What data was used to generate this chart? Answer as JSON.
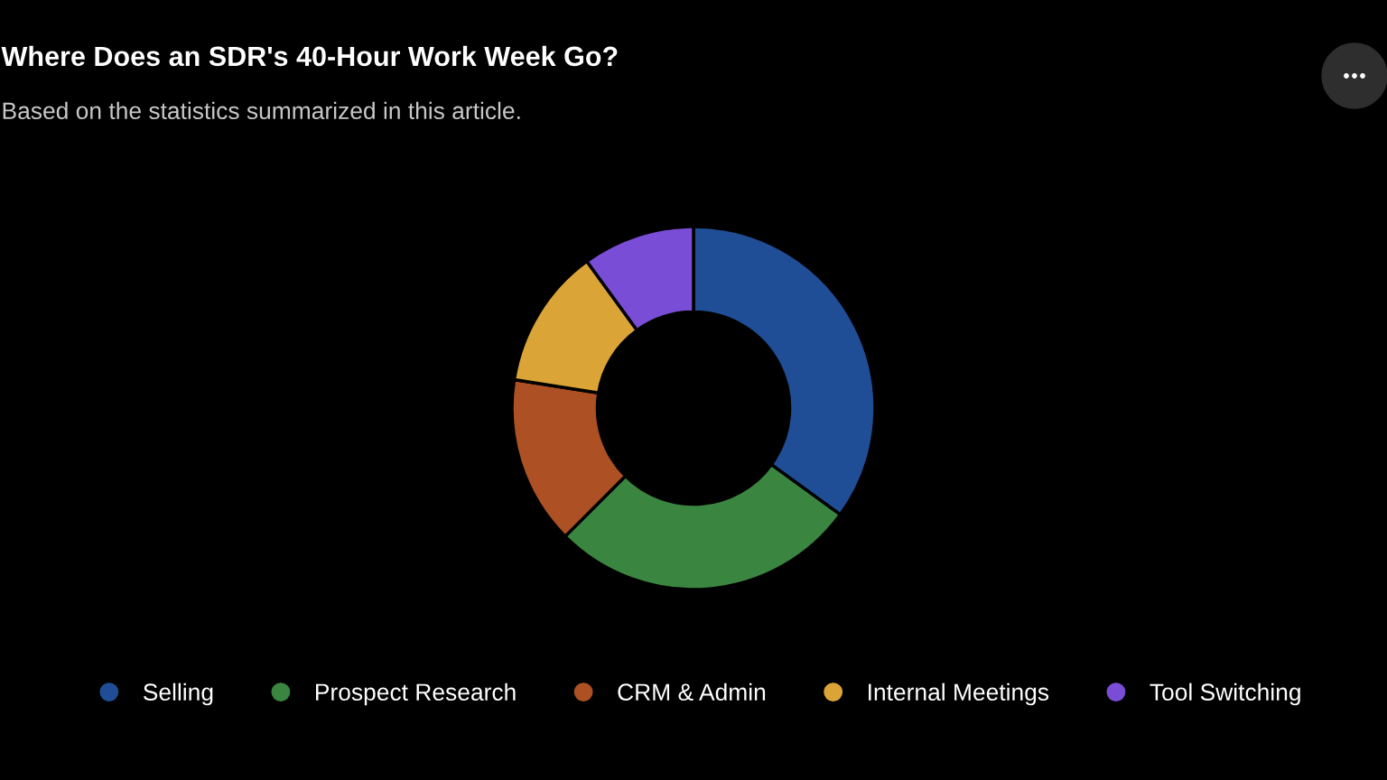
{
  "chart_data": {
    "type": "donut",
    "title": "Where Does an SDR's 40-Hour Work Week Go?",
    "subtitle": "Based on the statistics summarized in this article.",
    "categories": [
      "Selling",
      "Prospect Research",
      "CRM & Admin",
      "Internal Meetings",
      "Tool Switching"
    ],
    "values": [
      35,
      27.5,
      15,
      12.5,
      10
    ],
    "colors": [
      "#1f4e96",
      "#3a8540",
      "#ad5023",
      "#dba437",
      "#7a4dd6"
    ],
    "legend": "bottom"
  }
}
